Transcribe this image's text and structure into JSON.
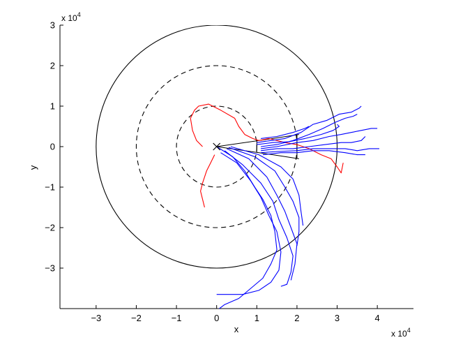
{
  "chart_data": {
    "type": "line",
    "title": "",
    "xlabel": "x",
    "ylabel": "y",
    "x_multiplier": "x 10",
    "x_multiplier_exp": "4",
    "y_multiplier": "x 10",
    "y_multiplier_exp": "4",
    "xlim": [
      -3.9,
      4.9
    ],
    "ylim": [
      -4.0,
      3.0
    ],
    "xticks": [
      -3,
      -2,
      -1,
      0,
      1,
      2,
      3,
      4
    ],
    "yticks": [
      -3,
      -2,
      -1,
      0,
      1,
      2,
      3
    ],
    "xtick_labels": [
      "−3",
      "−2",
      "−1",
      "0",
      "1",
      "2",
      "3",
      "4"
    ],
    "ytick_labels": [
      "−3",
      "−2",
      "−1",
      "0",
      "1",
      "2",
      "3"
    ],
    "grid": false,
    "colors": {
      "outer_circle": "#000000",
      "dashed_circles": "#000000",
      "blue": "#0000ff",
      "red": "#ff0000",
      "sector": "#000000"
    },
    "circles": [
      {
        "radius": 3,
        "style": "solid"
      },
      {
        "radius": 2,
        "style": "dashed"
      },
      {
        "radius": 1,
        "style": "dashed"
      }
    ],
    "origin_marker": {
      "x": 0,
      "y": 0,
      "symbol": "x"
    },
    "sector": {
      "lines": [
        [
          [
            0,
            0
          ],
          [
            1.4,
            0.2
          ]
        ],
        [
          [
            0,
            0
          ],
          [
            1.4,
            -0.2
          ]
        ],
        [
          [
            1.0,
            0.15
          ],
          [
            1.0,
            -0.15
          ]
        ],
        [
          [
            2.0,
            0.3
          ],
          [
            2.0,
            -0.3
          ]
        ],
        [
          [
            1.4,
            0.2
          ],
          [
            2.05,
            0.3
          ]
        ],
        [
          [
            1.4,
            -0.2
          ],
          [
            2.05,
            -0.3
          ]
        ]
      ]
    },
    "series": [
      {
        "color": "red",
        "values": [
          [
            -0.35,
            0.0
          ],
          [
            -0.5,
            0.15
          ],
          [
            -0.6,
            0.4
          ],
          [
            -0.65,
            0.7
          ],
          [
            -0.55,
            0.9
          ],
          [
            -0.45,
            1.0
          ],
          [
            -0.2,
            1.05
          ],
          [
            0.1,
            0.9
          ],
          [
            0.45,
            0.7
          ],
          [
            0.55,
            0.5
          ],
          [
            0.7,
            0.3
          ],
          [
            0.9,
            0.2
          ],
          [
            1.05,
            0.15
          ],
          [
            1.3,
            0.2
          ],
          [
            1.7,
            0.1
          ],
          [
            2.0,
            0.05
          ],
          [
            2.3,
            -0.05
          ],
          [
            2.6,
            -0.2
          ],
          [
            2.85,
            -0.3
          ],
          [
            3.0,
            -0.5
          ],
          [
            3.1,
            -0.65
          ],
          [
            3.15,
            -0.4
          ]
        ]
      },
      {
        "color": "red",
        "values": [
          [
            -0.05,
            -0.2
          ],
          [
            -0.15,
            -0.4
          ],
          [
            -0.25,
            -0.6
          ],
          [
            -0.35,
            -0.9
          ],
          [
            -0.4,
            -1.1
          ],
          [
            -0.35,
            -1.3
          ],
          [
            -0.3,
            -1.5
          ]
        ]
      },
      {
        "color": "blue",
        "values": [
          [
            0,
            0
          ],
          [
            0.4,
            -0.25
          ],
          [
            0.7,
            -0.6
          ],
          [
            0.95,
            -1.0
          ],
          [
            1.15,
            -1.3
          ],
          [
            1.35,
            -1.7
          ],
          [
            1.45,
            -2.1
          ],
          [
            1.5,
            -2.55
          ],
          [
            1.35,
            -2.9
          ],
          [
            1.15,
            -3.25
          ],
          [
            0.85,
            -3.5
          ],
          [
            0.55,
            -3.75
          ],
          [
            0.2,
            -3.9
          ],
          [
            0.0,
            -4.05
          ]
        ]
      },
      {
        "color": "blue",
        "values": [
          [
            0.1,
            -0.15
          ],
          [
            0.5,
            -0.4
          ],
          [
            0.85,
            -0.85
          ],
          [
            1.1,
            -1.25
          ],
          [
            1.3,
            -1.7
          ],
          [
            1.5,
            -2.1
          ],
          [
            1.6,
            -2.6
          ],
          [
            1.55,
            -3.05
          ],
          [
            1.35,
            -3.35
          ],
          [
            1.05,
            -3.55
          ],
          [
            0.65,
            -3.65
          ],
          [
            0.0,
            -3.65
          ]
        ]
      },
      {
        "color": "blue",
        "values": [
          [
            0.2,
            -0.1
          ],
          [
            0.65,
            -0.45
          ],
          [
            1.1,
            -0.9
          ],
          [
            1.4,
            -1.35
          ],
          [
            1.55,
            -1.8
          ],
          [
            1.75,
            -2.25
          ],
          [
            1.9,
            -2.7
          ],
          [
            1.85,
            -3.1
          ],
          [
            1.75,
            -3.4
          ],
          [
            1.6,
            -3.45
          ]
        ]
      },
      {
        "color": "blue",
        "values": [
          [
            0.25,
            -0.05
          ],
          [
            0.8,
            -0.3
          ],
          [
            1.25,
            -0.75
          ],
          [
            1.5,
            -1.2
          ],
          [
            1.7,
            -1.6
          ],
          [
            1.85,
            -2.0
          ],
          [
            2.0,
            -2.4
          ],
          [
            1.95,
            -2.9
          ],
          [
            1.85,
            -3.3
          ]
        ]
      },
      {
        "color": "blue",
        "values": [
          [
            0.3,
            -0.02
          ],
          [
            0.95,
            -0.25
          ],
          [
            1.45,
            -0.6
          ],
          [
            1.7,
            -1.0
          ],
          [
            1.9,
            -1.35
          ],
          [
            2.05,
            -1.75
          ],
          [
            2.05,
            -2.1
          ],
          [
            2.0,
            -2.45
          ]
        ]
      },
      {
        "color": "blue",
        "values": [
          [
            0.35,
            0.0
          ],
          [
            1.05,
            -0.2
          ],
          [
            1.6,
            -0.5
          ],
          [
            1.9,
            -0.8
          ],
          [
            2.05,
            -1.2
          ],
          [
            2.1,
            -1.6
          ],
          [
            2.15,
            -1.95
          ]
        ]
      },
      {
        "color": "blue",
        "values": [
          [
            1.0,
            0.1
          ],
          [
            1.35,
            0.15
          ],
          [
            1.7,
            0.2
          ],
          [
            2.1,
            0.35
          ],
          [
            2.4,
            0.55
          ],
          [
            2.75,
            0.65
          ],
          [
            3.05,
            0.8
          ],
          [
            3.35,
            0.85
          ],
          [
            3.55,
            0.95
          ],
          [
            3.6,
            1.0
          ]
        ]
      },
      {
        "color": "blue",
        "values": [
          [
            1.1,
            0.0
          ],
          [
            1.5,
            0.05
          ],
          [
            1.9,
            0.15
          ],
          [
            2.3,
            0.3
          ],
          [
            2.65,
            0.45
          ],
          [
            2.95,
            0.6
          ],
          [
            3.2,
            0.7
          ],
          [
            3.4,
            0.75
          ],
          [
            3.5,
            0.8
          ]
        ]
      },
      {
        "color": "blue",
        "values": [
          [
            1.1,
            -0.05
          ],
          [
            1.5,
            0.0
          ],
          [
            2.0,
            0.1
          ],
          [
            2.4,
            0.15
          ],
          [
            2.8,
            0.25
          ],
          [
            3.1,
            0.3
          ],
          [
            3.35,
            0.35
          ],
          [
            3.6,
            0.4
          ],
          [
            3.85,
            0.45
          ],
          [
            4.0,
            0.45
          ]
        ]
      },
      {
        "color": "blue",
        "values": [
          [
            1.1,
            -0.1
          ],
          [
            1.5,
            -0.05
          ],
          [
            1.9,
            -0.05
          ],
          [
            2.3,
            0.0
          ],
          [
            2.7,
            0.05
          ],
          [
            3.1,
            0.1
          ],
          [
            3.35,
            0.1
          ],
          [
            3.6,
            0.15
          ],
          [
            3.7,
            0.25
          ]
        ]
      },
      {
        "color": "blue",
        "values": [
          [
            1.1,
            -0.15
          ],
          [
            1.5,
            -0.12
          ],
          [
            2.0,
            -0.1
          ],
          [
            2.4,
            -0.05
          ],
          [
            2.8,
            -0.05
          ],
          [
            3.2,
            -0.05
          ],
          [
            3.5,
            -0.1
          ],
          [
            3.8,
            -0.05
          ],
          [
            4.05,
            -0.05
          ]
        ]
      },
      {
        "color": "blue",
        "values": [
          [
            1.15,
            -0.2
          ],
          [
            1.6,
            -0.15
          ],
          [
            2.0,
            -0.15
          ],
          [
            2.4,
            -0.1
          ],
          [
            2.8,
            -0.1
          ],
          [
            3.2,
            -0.15
          ],
          [
            3.5,
            -0.2
          ],
          [
            3.7,
            -0.2
          ]
        ]
      },
      {
        "color": "blue",
        "values": [
          [
            1.0,
            0.05
          ],
          [
            1.4,
            0.1
          ],
          [
            1.8,
            0.12
          ],
          [
            2.2,
            0.2
          ],
          [
            2.6,
            0.3
          ],
          [
            2.9,
            0.4
          ],
          [
            3.05,
            0.5
          ],
          [
            3.0,
            0.55
          ]
        ]
      },
      {
        "color": "blue",
        "values": [
          [
            1.1,
            0.2
          ],
          [
            1.5,
            0.25
          ],
          [
            1.9,
            0.35
          ],
          [
            2.2,
            0.45
          ],
          [
            2.3,
            0.5
          ]
        ]
      }
    ]
  }
}
